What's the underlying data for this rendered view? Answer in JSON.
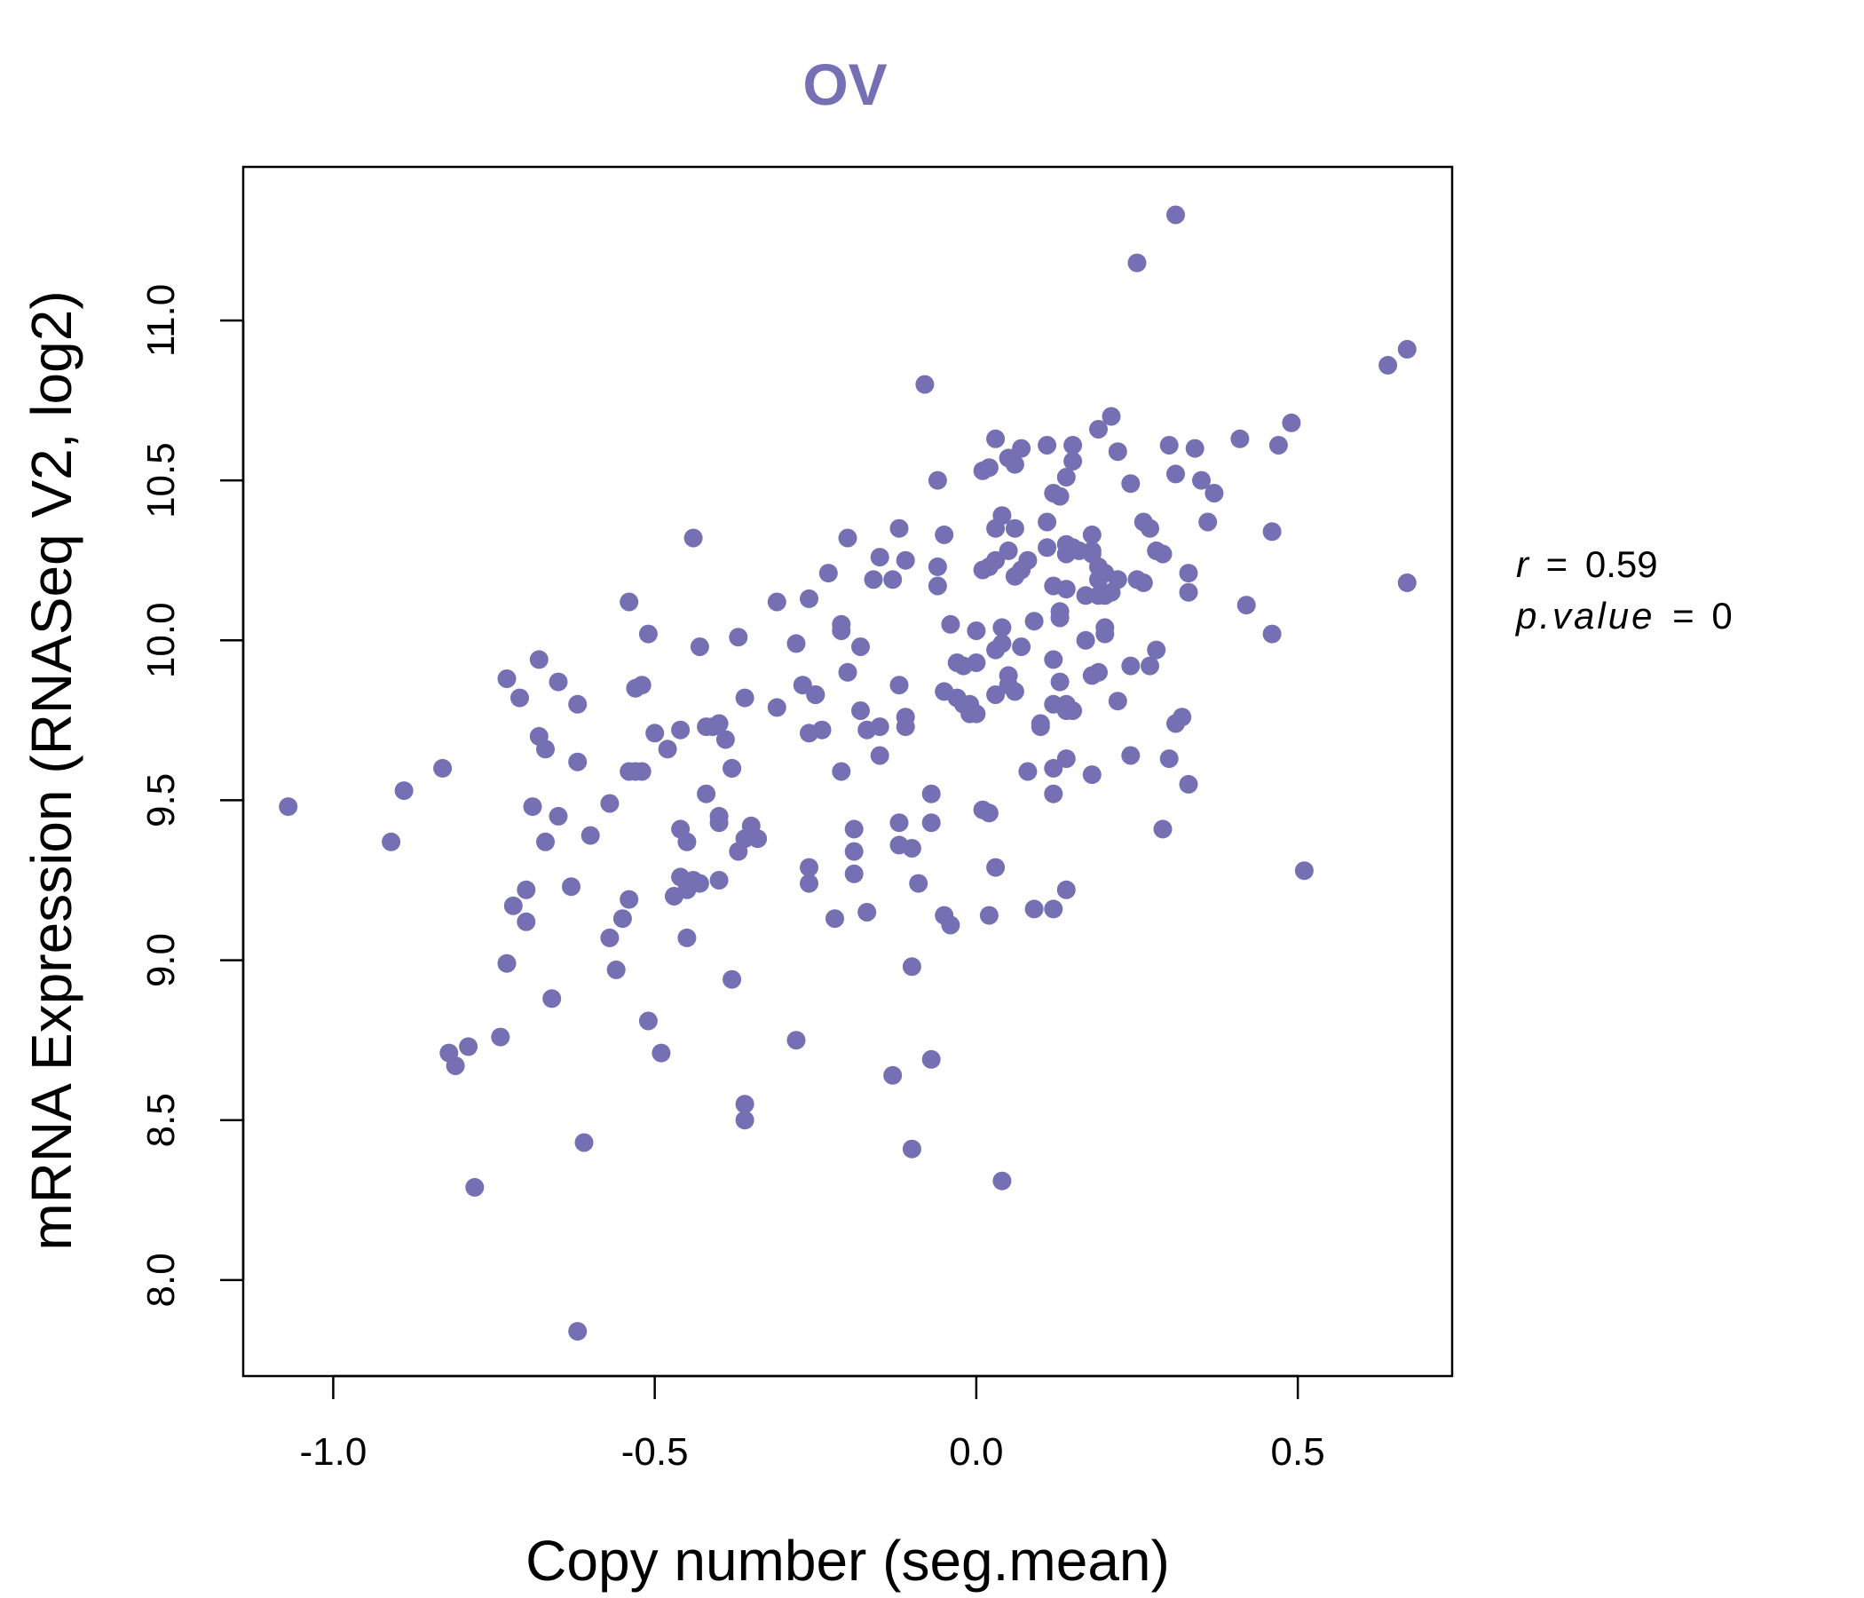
{
  "chart_data": {
    "type": "scatter",
    "title": "OV",
    "xlabel": "Copy number (seg.mean)",
    "ylabel": "mRNA Expression (RNASeq V2, log2)",
    "xlim": [
      -1.14,
      0.74
    ],
    "ylim": [
      7.7,
      11.48
    ],
    "x_ticks": [
      -1.0,
      -0.5,
      0.0,
      0.5
    ],
    "x_tick_labels": [
      "-1.0",
      "-0.5",
      "0.0",
      "0.5"
    ],
    "y_ticks": [
      8.0,
      8.5,
      9.0,
      9.5,
      10.0,
      10.5,
      11.0
    ],
    "y_tick_labels": [
      "8.0",
      "8.5",
      "9.0",
      "9.5",
      "10.0",
      "10.5",
      "11.0"
    ],
    "grid": false,
    "point_color": "#7570b3",
    "stats": {
      "r_symbol": "r",
      "r_value": "0.59",
      "p_symbol": "p.value",
      "p_value": "0"
    },
    "points": [
      [
        -1.07,
        9.48
      ],
      [
        -0.91,
        9.37
      ],
      [
        -0.89,
        9.53
      ],
      [
        -0.83,
        9.6
      ],
      [
        -0.82,
        8.71
      ],
      [
        -0.81,
        8.67
      ],
      [
        -0.79,
        8.73
      ],
      [
        -0.78,
        8.29
      ],
      [
        -0.74,
        8.76
      ],
      [
        -0.73,
        8.99
      ],
      [
        -0.73,
        9.88
      ],
      [
        -0.72,
        9.17
      ],
      [
        -0.71,
        9.82
      ],
      [
        -0.7,
        9.12
      ],
      [
        -0.7,
        9.22
      ],
      [
        -0.69,
        9.48
      ],
      [
        -0.68,
        9.94
      ],
      [
        -0.68,
        9.7
      ],
      [
        -0.67,
        9.37
      ],
      [
        -0.67,
        9.66
      ],
      [
        -0.66,
        8.88
      ],
      [
        -0.65,
        9.45
      ],
      [
        -0.65,
        9.87
      ],
      [
        -0.63,
        9.23
      ],
      [
        -0.62,
        9.62
      ],
      [
        -0.62,
        9.8
      ],
      [
        -0.62,
        7.84
      ],
      [
        -0.61,
        8.43
      ],
      [
        -0.6,
        9.39
      ],
      [
        -0.57,
        9.07
      ],
      [
        -0.57,
        9.49
      ],
      [
        -0.56,
        8.97
      ],
      [
        -0.55,
        9.13
      ],
      [
        -0.54,
        9.19
      ],
      [
        -0.54,
        10.12
      ],
      [
        -0.54,
        9.59
      ],
      [
        -0.53,
        9.85
      ],
      [
        -0.53,
        9.59
      ],
      [
        -0.52,
        9.59
      ],
      [
        -0.52,
        9.86
      ],
      [
        -0.51,
        8.81
      ],
      [
        -0.51,
        10.02
      ],
      [
        -0.5,
        9.71
      ],
      [
        -0.49,
        8.71
      ],
      [
        -0.48,
        9.66
      ],
      [
        -0.47,
        9.2
      ],
      [
        -0.46,
        9.72
      ],
      [
        -0.46,
        9.26
      ],
      [
        -0.46,
        9.41
      ],
      [
        -0.45,
        9.07
      ],
      [
        -0.45,
        9.37
      ],
      [
        -0.45,
        9.22
      ],
      [
        -0.44,
        9.25
      ],
      [
        -0.44,
        10.32
      ],
      [
        -0.43,
        9.24
      ],
      [
        -0.43,
        9.98
      ],
      [
        -0.42,
        9.52
      ],
      [
        -0.42,
        9.73
      ],
      [
        -0.41,
        9.73
      ],
      [
        -0.4,
        9.43
      ],
      [
        -0.4,
        9.45
      ],
      [
        -0.4,
        9.74
      ],
      [
        -0.4,
        9.25
      ],
      [
        -0.39,
        9.69
      ],
      [
        -0.38,
        8.94
      ],
      [
        -0.38,
        9.6
      ],
      [
        -0.38,
        9.6
      ],
      [
        -0.37,
        10.01
      ],
      [
        -0.37,
        9.34
      ],
      [
        -0.36,
        9.38
      ],
      [
        -0.36,
        9.82
      ],
      [
        -0.35,
        9.42
      ],
      [
        -0.36,
        8.55
      ],
      [
        -0.36,
        8.5
      ],
      [
        -0.34,
        9.38
      ],
      [
        -0.31,
        9.79
      ],
      [
        -0.31,
        10.12
      ],
      [
        -0.28,
        8.75
      ],
      [
        -0.28,
        9.99
      ],
      [
        -0.27,
        9.86
      ],
      [
        -0.26,
        9.29
      ],
      [
        -0.26,
        9.24
      ],
      [
        -0.26,
        10.13
      ],
      [
        -0.26,
        9.71
      ],
      [
        -0.25,
        9.83
      ],
      [
        -0.25,
        9.83
      ],
      [
        -0.24,
        9.72
      ],
      [
        -0.23,
        10.21
      ],
      [
        -0.22,
        9.13
      ],
      [
        -0.21,
        9.59
      ],
      [
        -0.21,
        10.05
      ],
      [
        -0.21,
        10.03
      ],
      [
        -0.2,
        9.9
      ],
      [
        -0.2,
        10.32
      ],
      [
        -0.19,
        9.27
      ],
      [
        -0.19,
        9.41
      ],
      [
        -0.19,
        9.34
      ],
      [
        -0.18,
        9.98
      ],
      [
        -0.18,
        9.78
      ],
      [
        -0.17,
        9.15
      ],
      [
        -0.17,
        9.72
      ],
      [
        -0.16,
        10.19
      ],
      [
        -0.15,
        10.26
      ],
      [
        -0.15,
        9.73
      ],
      [
        -0.15,
        9.64
      ],
      [
        -0.13,
        8.64
      ],
      [
        -0.13,
        10.19
      ],
      [
        -0.12,
        9.86
      ],
      [
        -0.12,
        10.35
      ],
      [
        -0.12,
        9.43
      ],
      [
        -0.12,
        9.36
      ],
      [
        -0.11,
        9.73
      ],
      [
        -0.11,
        9.76
      ],
      [
        -0.11,
        10.25
      ],
      [
        -0.1,
        9.35
      ],
      [
        -0.1,
        8.98
      ],
      [
        -0.1,
        8.41
      ],
      [
        -0.09,
        9.24
      ],
      [
        -0.08,
        10.8
      ],
      [
        -0.07,
        9.52
      ],
      [
        -0.07,
        9.43
      ],
      [
        -0.07,
        8.69
      ],
      [
        -0.06,
        10.5
      ],
      [
        -0.06,
        10.23
      ],
      [
        -0.06,
        10.17
      ],
      [
        -0.05,
        10.33
      ],
      [
        -0.05,
        9.84
      ],
      [
        -0.05,
        9.14
      ],
      [
        -0.04,
        9.11
      ],
      [
        -0.04,
        10.05
      ],
      [
        -0.03,
        9.93
      ],
      [
        -0.03,
        9.82
      ],
      [
        -0.02,
        9.8
      ],
      [
        -0.02,
        9.92
      ],
      [
        -0.01,
        9.77
      ],
      [
        -0.01,
        9.8
      ],
      [
        0.0,
        9.93
      ],
      [
        0.0,
        10.03
      ],
      [
        0.0,
        9.77
      ],
      [
        0.01,
        10.53
      ],
      [
        0.01,
        10.22
      ],
      [
        0.01,
        9.47
      ],
      [
        0.02,
        9.46
      ],
      [
        0.02,
        9.14
      ],
      [
        0.02,
        10.54
      ],
      [
        0.02,
        10.23
      ],
      [
        0.03,
        10.35
      ],
      [
        0.03,
        10.25
      ],
      [
        0.03,
        9.29
      ],
      [
        0.03,
        9.97
      ],
      [
        0.03,
        9.83
      ],
      [
        0.03,
        10.63
      ],
      [
        0.04,
        10.04
      ],
      [
        0.04,
        10.39
      ],
      [
        0.04,
        9.99
      ],
      [
        0.04,
        8.31
      ],
      [
        0.05,
        10.28
      ],
      [
        0.05,
        10.57
      ],
      [
        0.05,
        9.86
      ],
      [
        0.05,
        9.89
      ],
      [
        0.06,
        10.2
      ],
      [
        0.06,
        10.55
      ],
      [
        0.06,
        9.84
      ],
      [
        0.06,
        10.35
      ],
      [
        0.07,
        10.6
      ],
      [
        0.07,
        10.22
      ],
      [
        0.07,
        9.98
      ],
      [
        0.08,
        10.25
      ],
      [
        0.08,
        9.59
      ],
      [
        0.09,
        10.06
      ],
      [
        0.09,
        9.16
      ],
      [
        0.1,
        9.74
      ],
      [
        0.1,
        9.73
      ],
      [
        0.11,
        10.29
      ],
      [
        0.11,
        10.61
      ],
      [
        0.11,
        10.37
      ],
      [
        0.12,
        10.46
      ],
      [
        0.12,
        9.94
      ],
      [
        0.12,
        9.52
      ],
      [
        0.12,
        9.6
      ],
      [
        0.12,
        10.17
      ],
      [
        0.12,
        9.8
      ],
      [
        0.12,
        9.16
      ],
      [
        0.13,
        9.87
      ],
      [
        0.13,
        10.07
      ],
      [
        0.13,
        10.45
      ],
      [
        0.13,
        10.09
      ],
      [
        0.14,
        10.16
      ],
      [
        0.14,
        9.63
      ],
      [
        0.14,
        9.8
      ],
      [
        0.14,
        9.78
      ],
      [
        0.14,
        10.27
      ],
      [
        0.14,
        10.3
      ],
      [
        0.14,
        9.22
      ],
      [
        0.14,
        10.51
      ],
      [
        0.15,
        10.61
      ],
      [
        0.15,
        10.56
      ],
      [
        0.15,
        10.29
      ],
      [
        0.15,
        9.78
      ],
      [
        0.16,
        10.28
      ],
      [
        0.17,
        10.14
      ],
      [
        0.17,
        10.0
      ],
      [
        0.18,
        10.33
      ],
      [
        0.18,
        10.28
      ],
      [
        0.18,
        10.27
      ],
      [
        0.18,
        9.89
      ],
      [
        0.18,
        9.58
      ],
      [
        0.19,
        10.23
      ],
      [
        0.19,
        10.19
      ],
      [
        0.19,
        10.66
      ],
      [
        0.19,
        9.9
      ],
      [
        0.19,
        10.14
      ],
      [
        0.2,
        10.14
      ],
      [
        0.2,
        10.04
      ],
      [
        0.2,
        10.02
      ],
      [
        0.2,
        10.21
      ],
      [
        0.21,
        10.7
      ],
      [
        0.21,
        10.15
      ],
      [
        0.22,
        10.19
      ],
      [
        0.22,
        10.59
      ],
      [
        0.22,
        9.81
      ],
      [
        0.24,
        9.64
      ],
      [
        0.24,
        9.92
      ],
      [
        0.24,
        10.49
      ],
      [
        0.25,
        11.18
      ],
      [
        0.25,
        10.19
      ],
      [
        0.26,
        10.37
      ],
      [
        0.26,
        10.18
      ],
      [
        0.27,
        10.35
      ],
      [
        0.27,
        9.92
      ],
      [
        0.28,
        10.28
      ],
      [
        0.28,
        9.97
      ],
      [
        0.29,
        9.41
      ],
      [
        0.29,
        10.27
      ],
      [
        0.3,
        9.63
      ],
      [
        0.3,
        10.61
      ],
      [
        0.31,
        11.33
      ],
      [
        0.31,
        10.52
      ],
      [
        0.31,
        9.74
      ],
      [
        0.32,
        9.76
      ],
      [
        0.33,
        9.55
      ],
      [
        0.33,
        10.21
      ],
      [
        0.33,
        10.15
      ],
      [
        0.34,
        10.6
      ],
      [
        0.35,
        10.5
      ],
      [
        0.36,
        10.37
      ],
      [
        0.37,
        10.46
      ],
      [
        0.41,
        10.63
      ],
      [
        0.42,
        10.11
      ],
      [
        0.46,
        10.34
      ],
      [
        0.46,
        10.02
      ],
      [
        0.47,
        10.61
      ],
      [
        0.49,
        10.68
      ],
      [
        0.51,
        9.28
      ],
      [
        0.64,
        10.86
      ],
      [
        0.67,
        10.91
      ],
      [
        0.67,
        10.18
      ]
    ]
  }
}
